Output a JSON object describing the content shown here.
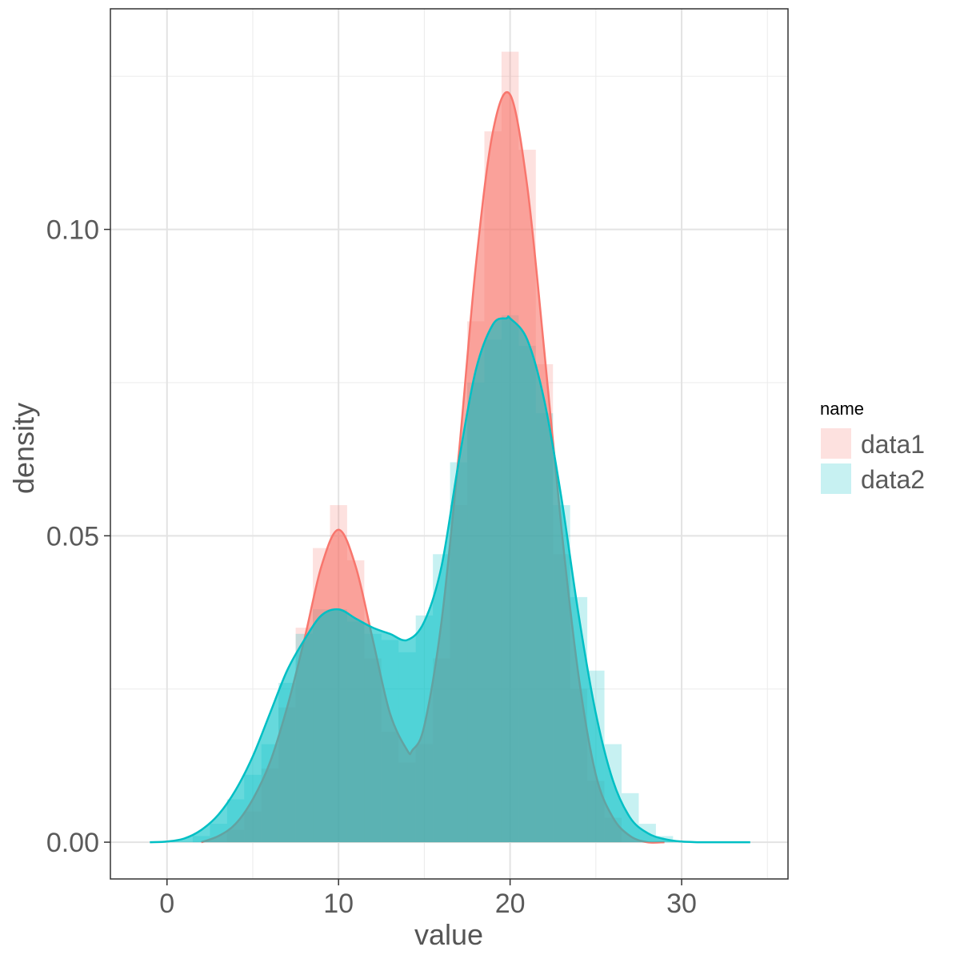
{
  "chart_data": {
    "type": "area",
    "xlabel": "value",
    "ylabel": "density",
    "xlim": [
      -3.3,
      36.2
    ],
    "ylim": [
      -0.006,
      0.136
    ],
    "x_ticks": [
      0,
      10,
      20,
      30
    ],
    "x_tick_labels": [
      "0",
      "10",
      "20",
      "30"
    ],
    "x_minor_ticks": [
      5,
      15,
      25,
      35
    ],
    "y_ticks": [
      0.0,
      0.05,
      0.1
    ],
    "y_tick_labels": [
      "0.00",
      "0.05",
      "0.10"
    ],
    "y_minor_ticks": [
      0.025,
      0.075,
      0.125
    ],
    "grid": true,
    "legend": {
      "title": "name",
      "position": "right"
    },
    "series": [
      {
        "name": "data1",
        "color": "#F8766D",
        "histogram": {
          "bin_width": 1,
          "bins": [
            {
              "x0": 3.5,
              "x1": 4.5,
              "density": 0.002
            },
            {
              "x0": 4.5,
              "x1": 5.5,
              "density": 0.005
            },
            {
              "x0": 5.5,
              "x1": 6.5,
              "density": 0.012
            },
            {
              "x0": 6.5,
              "x1": 7.5,
              "density": 0.022
            },
            {
              "x0": 7.5,
              "x1": 8.5,
              "density": 0.035
            },
            {
              "x0": 8.5,
              "x1": 9.5,
              "density": 0.048
            },
            {
              "x0": 9.5,
              "x1": 10.5,
              "density": 0.055
            },
            {
              "x0": 10.5,
              "x1": 11.5,
              "density": 0.046
            },
            {
              "x0": 11.5,
              "x1": 12.5,
              "density": 0.03
            },
            {
              "x0": 12.5,
              "x1": 13.5,
              "density": 0.018
            },
            {
              "x0": 13.5,
              "x1": 14.5,
              "density": 0.013
            },
            {
              "x0": 14.5,
              "x1": 15.5,
              "density": 0.016
            },
            {
              "x0": 15.5,
              "x1": 16.5,
              "density": 0.03
            },
            {
              "x0": 16.5,
              "x1": 17.5,
              "density": 0.055
            },
            {
              "x0": 17.5,
              "x1": 18.5,
              "density": 0.085
            },
            {
              "x0": 18.5,
              "x1": 19.5,
              "density": 0.116
            },
            {
              "x0": 19.5,
              "x1": 20.5,
              "density": 0.129
            },
            {
              "x0": 20.5,
              "x1": 21.5,
              "density": 0.113
            },
            {
              "x0": 21.5,
              "x1": 22.5,
              "density": 0.078
            },
            {
              "x0": 22.5,
              "x1": 23.5,
              "density": 0.047
            },
            {
              "x0": 23.5,
              "x1": 24.5,
              "density": 0.025
            },
            {
              "x0": 24.5,
              "x1": 25.5,
              "density": 0.01
            },
            {
              "x0": 25.5,
              "x1": 26.5,
              "density": 0.004
            }
          ]
        },
        "density_curve": {
          "x": [
            2,
            3,
            4,
            5,
            6,
            7,
            8,
            9,
            10,
            11,
            12,
            13,
            14,
            14.3,
            15,
            16,
            17,
            18,
            19,
            20,
            21,
            22,
            23,
            24,
            25,
            26,
            27,
            28,
            29
          ],
          "y": [
            0.0,
            0.001,
            0.003,
            0.007,
            0.013,
            0.022,
            0.033,
            0.045,
            0.051,
            0.045,
            0.033,
            0.021,
            0.015,
            0.015,
            0.019,
            0.036,
            0.063,
            0.094,
            0.116,
            0.122,
            0.107,
            0.08,
            0.051,
            0.027,
            0.011,
            0.004,
            0.001,
            0.0,
            0.0
          ]
        }
      },
      {
        "name": "data2",
        "color": "#00BFC4",
        "histogram": {
          "bin_width": 1,
          "bins": [
            {
              "x0": 1.5,
              "x1": 2.5,
              "density": 0.001
            },
            {
              "x0": 2.5,
              "x1": 3.5,
              "density": 0.003
            },
            {
              "x0": 3.5,
              "x1": 4.5,
              "density": 0.007
            },
            {
              "x0": 4.5,
              "x1": 5.5,
              "density": 0.011
            },
            {
              "x0": 5.5,
              "x1": 6.5,
              "density": 0.016
            },
            {
              "x0": 6.5,
              "x1": 7.5,
              "density": 0.026
            },
            {
              "x0": 7.5,
              "x1": 8.5,
              "density": 0.034
            },
            {
              "x0": 8.5,
              "x1": 9.5,
              "density": 0.038
            },
            {
              "x0": 9.5,
              "x1": 10.5,
              "density": 0.038
            },
            {
              "x0": 10.5,
              "x1": 11.5,
              "density": 0.036
            },
            {
              "x0": 11.5,
              "x1": 12.5,
              "density": 0.034
            },
            {
              "x0": 12.5,
              "x1": 13.5,
              "density": 0.033
            },
            {
              "x0": 13.5,
              "x1": 14.5,
              "density": 0.031
            },
            {
              "x0": 14.5,
              "x1": 15.5,
              "density": 0.037
            },
            {
              "x0": 15.5,
              "x1": 16.5,
              "density": 0.047
            },
            {
              "x0": 16.5,
              "x1": 17.5,
              "density": 0.062
            },
            {
              "x0": 17.5,
              "x1": 18.5,
              "density": 0.075
            },
            {
              "x0": 18.5,
              "x1": 19.5,
              "density": 0.082
            },
            {
              "x0": 19.5,
              "x1": 20.5,
              "density": 0.086
            },
            {
              "x0": 20.5,
              "x1": 21.5,
              "density": 0.081
            },
            {
              "x0": 21.5,
              "x1": 22.5,
              "density": 0.07
            },
            {
              "x0": 22.5,
              "x1": 23.5,
              "density": 0.055
            },
            {
              "x0": 23.5,
              "x1": 24.5,
              "density": 0.04
            },
            {
              "x0": 24.5,
              "x1": 25.5,
              "density": 0.028
            },
            {
              "x0": 25.5,
              "x1": 26.5,
              "density": 0.016
            },
            {
              "x0": 26.5,
              "x1": 27.5,
              "density": 0.008
            },
            {
              "x0": 27.5,
              "x1": 28.5,
              "density": 0.003
            },
            {
              "x0": 28.5,
              "x1": 29.5,
              "density": 0.001
            }
          ]
        },
        "density_curve": {
          "x": [
            -1,
            0,
            1,
            2,
            3,
            4,
            5,
            6,
            7,
            8,
            9,
            10,
            11,
            12,
            13,
            14,
            15,
            16,
            17,
            18,
            19,
            19.8,
            20,
            21,
            22,
            23,
            24,
            25,
            26,
            27,
            28,
            29,
            30,
            31,
            32,
            33,
            34
          ],
          "y": [
            0.0,
            0.0001,
            0.0006,
            0.002,
            0.0045,
            0.0085,
            0.014,
            0.021,
            0.028,
            0.033,
            0.037,
            0.038,
            0.0365,
            0.035,
            0.034,
            0.033,
            0.036,
            0.045,
            0.062,
            0.077,
            0.0845,
            0.0855,
            0.0855,
            0.082,
            0.072,
            0.056,
            0.037,
            0.021,
            0.01,
            0.004,
            0.0015,
            0.0005,
            0.0001,
            0.0,
            0.0,
            0.0,
            0.0
          ]
        }
      }
    ]
  }
}
